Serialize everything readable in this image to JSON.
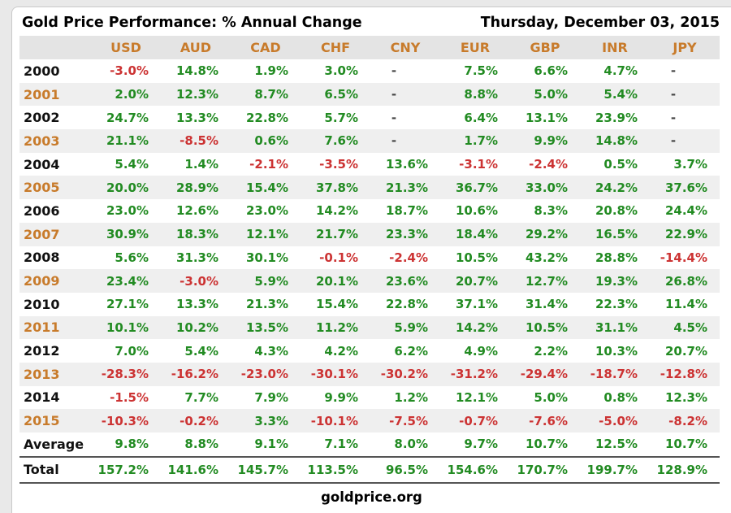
{
  "colors": {
    "positive": "#228B22",
    "negative": "#CC3333",
    "orange": "#C87B2B",
    "dash": "#444444",
    "header_row_bg": "#e4e4e4",
    "alt_row_bg": "#efefef"
  },
  "chart_data": {
    "type": "table",
    "title": "Gold Price Performance: % Annual Change",
    "date": "Thursday, December 03, 2015",
    "source": "goldprice.org",
    "columns": [
      "USD",
      "AUD",
      "CAD",
      "CHF",
      "CNY",
      "EUR",
      "GBP",
      "INR",
      "JPY"
    ],
    "rows": [
      {
        "label": "2000",
        "values": [
          "-3.0%",
          "14.8%",
          "1.9%",
          "3.0%",
          "-",
          "7.5%",
          "6.6%",
          "4.7%",
          "-"
        ]
      },
      {
        "label": "2001",
        "values": [
          "2.0%",
          "12.3%",
          "8.7%",
          "6.5%",
          "-",
          "8.8%",
          "5.0%",
          "5.4%",
          "-"
        ]
      },
      {
        "label": "2002",
        "values": [
          "24.7%",
          "13.3%",
          "22.8%",
          "5.7%",
          "-",
          "6.4%",
          "13.1%",
          "23.9%",
          "-"
        ]
      },
      {
        "label": "2003",
        "values": [
          "21.1%",
          "-8.5%",
          "0.6%",
          "7.6%",
          "-",
          "1.7%",
          "9.9%",
          "14.8%",
          "-"
        ]
      },
      {
        "label": "2004",
        "values": [
          "5.4%",
          "1.4%",
          "-2.1%",
          "-3.5%",
          "13.6%",
          "-3.1%",
          "-2.4%",
          "0.5%",
          "3.7%"
        ]
      },
      {
        "label": "2005",
        "values": [
          "20.0%",
          "28.9%",
          "15.4%",
          "37.8%",
          "21.3%",
          "36.7%",
          "33.0%",
          "24.2%",
          "37.6%"
        ]
      },
      {
        "label": "2006",
        "values": [
          "23.0%",
          "12.6%",
          "23.0%",
          "14.2%",
          "18.7%",
          "10.6%",
          "8.3%",
          "20.8%",
          "24.4%"
        ]
      },
      {
        "label": "2007",
        "values": [
          "30.9%",
          "18.3%",
          "12.1%",
          "21.7%",
          "23.3%",
          "18.4%",
          "29.2%",
          "16.5%",
          "22.9%"
        ]
      },
      {
        "label": "2008",
        "values": [
          "5.6%",
          "31.3%",
          "30.1%",
          "-0.1%",
          "-2.4%",
          "10.5%",
          "43.2%",
          "28.8%",
          "-14.4%"
        ]
      },
      {
        "label": "2009",
        "values": [
          "23.4%",
          "-3.0%",
          "5.9%",
          "20.1%",
          "23.6%",
          "20.7%",
          "12.7%",
          "19.3%",
          "26.8%"
        ]
      },
      {
        "label": "2010",
        "values": [
          "27.1%",
          "13.3%",
          "21.3%",
          "15.4%",
          "22.8%",
          "37.1%",
          "31.4%",
          "22.3%",
          "11.4%"
        ]
      },
      {
        "label": "2011",
        "values": [
          "10.1%",
          "10.2%",
          "13.5%",
          "11.2%",
          "5.9%",
          "14.2%",
          "10.5%",
          "31.1%",
          "4.5%"
        ]
      },
      {
        "label": "2012",
        "values": [
          "7.0%",
          "5.4%",
          "4.3%",
          "4.2%",
          "6.2%",
          "4.9%",
          "2.2%",
          "10.3%",
          "20.7%"
        ]
      },
      {
        "label": "2013",
        "values": [
          "-28.3%",
          "-16.2%",
          "-23.0%",
          "-30.1%",
          "-30.2%",
          "-31.2%",
          "-29.4%",
          "-18.7%",
          "-12.8%"
        ]
      },
      {
        "label": "2014",
        "values": [
          "-1.5%",
          "7.7%",
          "7.9%",
          "9.9%",
          "1.2%",
          "12.1%",
          "5.0%",
          "0.8%",
          "12.3%"
        ]
      },
      {
        "label": "2015",
        "values": [
          "-10.3%",
          "-0.2%",
          "3.3%",
          "-10.1%",
          "-7.5%",
          "-0.7%",
          "-7.6%",
          "-5.0%",
          "-8.2%"
        ]
      }
    ],
    "summary_rows": [
      {
        "label": "Average",
        "values": [
          "9.8%",
          "8.8%",
          "9.1%",
          "7.1%",
          "8.0%",
          "9.7%",
          "10.7%",
          "12.5%",
          "10.7%"
        ]
      },
      {
        "label": "Total",
        "values": [
          "157.2%",
          "141.6%",
          "145.7%",
          "113.5%",
          "96.5%",
          "154.6%",
          "170.7%",
          "199.7%",
          "128.9%"
        ]
      }
    ]
  }
}
